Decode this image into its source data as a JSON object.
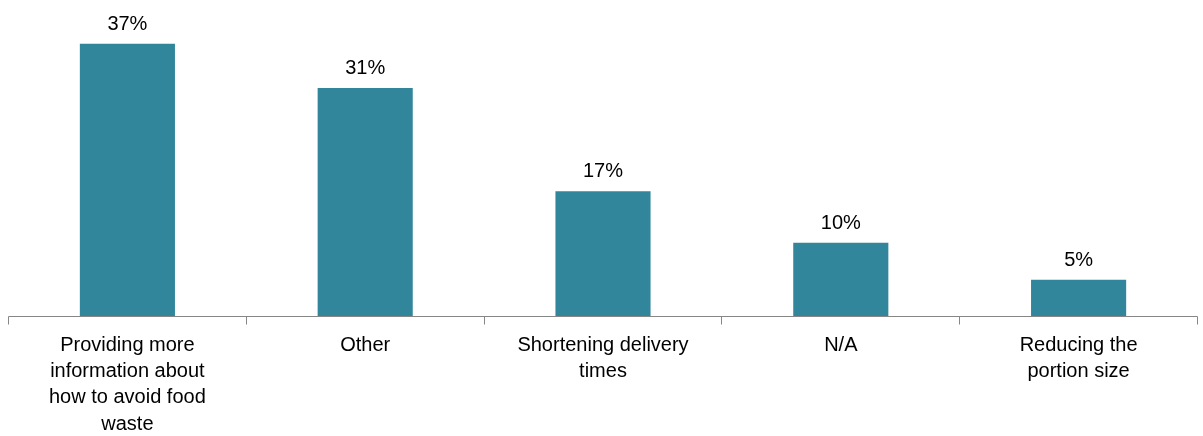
{
  "chart_data": {
    "type": "bar",
    "categories": [
      "Providing more information about how to avoid food waste",
      "Other",
      "Shortening delivery times",
      "N/A",
      "Reducing the portion size"
    ],
    "values": [
      37,
      31,
      17,
      10,
      5
    ],
    "value_labels": [
      "37%",
      "31%",
      "17%",
      "10%",
      "5%"
    ],
    "color": "#31869b",
    "grid": false
  }
}
